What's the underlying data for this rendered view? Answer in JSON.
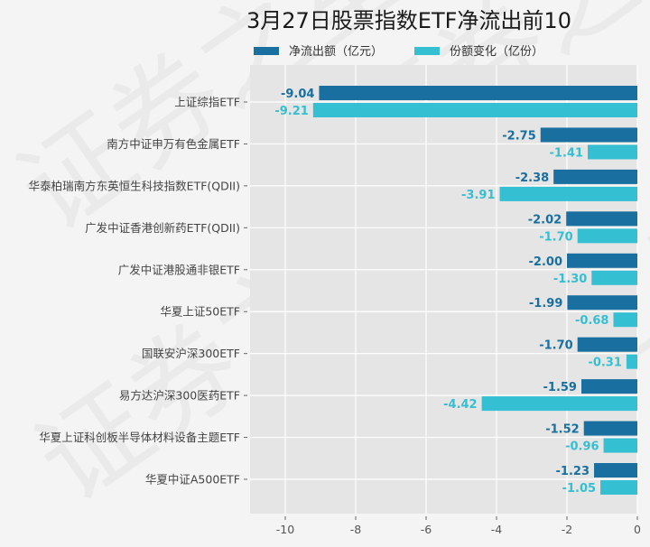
{
  "chart_data": {
    "type": "bar",
    "orientation": "horizontal",
    "title": "3月27日股票指数ETF净流出前10",
    "xlabel": "",
    "ylabel": "",
    "xlim": [
      -11,
      0
    ],
    "xticks": [
      -10,
      -8,
      -6,
      -4,
      -2,
      0
    ],
    "grid": true,
    "legend_position": "top",
    "categories": [
      "上证综指ETF",
      "南方中证申万有色金属ETF",
      "华泰柏瑞南方东英恒生科技指数ETF(QDII)",
      "广发中证香港创新药ETF(QDII)",
      "广发中证港股通非银ETF",
      "华夏上证50ETF",
      "国联安沪深300ETF",
      "易方达沪深300医药ETF",
      "华夏上证科创板半导体材料设备主题ETF",
      "华夏中证A500ETF"
    ],
    "series": [
      {
        "name": "净流出额（亿元）",
        "color": "#186fa0",
        "values": [
          -9.04,
          -2.75,
          -2.38,
          -2.02,
          -2.0,
          -1.99,
          -1.7,
          -1.59,
          -1.52,
          -1.23
        ],
        "labels": [
          "-9.04",
          "-2.75",
          "-2.38",
          "-2.02",
          "-2.00",
          "-1.99",
          "-1.70",
          "-1.59",
          "-1.52",
          "-1.23"
        ]
      },
      {
        "name": "份额变化（亿份）",
        "color": "#35bfd2",
        "values": [
          -9.21,
          -1.41,
          -3.91,
          -1.7,
          -1.3,
          -0.68,
          -0.31,
          -4.42,
          -0.96,
          -1.05
        ],
        "labels": [
          "-9.21",
          "-1.41",
          "-3.91",
          "-1.70",
          "-1.30",
          "-0.68",
          "-0.31",
          "-4.42",
          "-0.96",
          "-1.05"
        ]
      }
    ]
  },
  "watermark": "证券之星",
  "colors": {
    "background": "#f4f4f4",
    "plot_background": "#e5e5e5",
    "grid": "#ffffff"
  }
}
